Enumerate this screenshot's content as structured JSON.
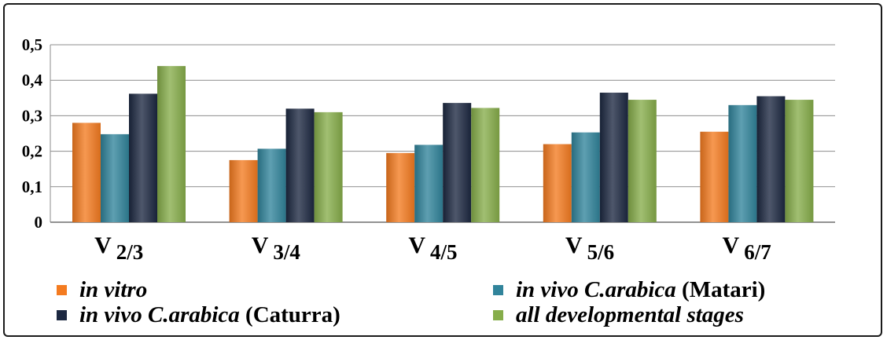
{
  "chart_data": {
    "type": "bar",
    "categories": [
      "V 2/3",
      "V 3/4",
      "V 4/5",
      "V 5/6",
      "V 6/7"
    ],
    "category_parts": [
      {
        "main": "V",
        "sub": "2/3"
      },
      {
        "main": "V",
        "sub": "3/4"
      },
      {
        "main": "V",
        "sub": "4/5"
      },
      {
        "main": "V",
        "sub": "5/6"
      },
      {
        "main": "V",
        "sub": "6/7"
      }
    ],
    "series": [
      {
        "name": "in vitro",
        "name_italic": "in vitro",
        "name_plain": "",
        "color": "#f47b20",
        "values": [
          0.28,
          0.175,
          0.195,
          0.22,
          0.255
        ]
      },
      {
        "name": "in vivo C.arabica (Matari)",
        "name_italic": "in vivo C.arabica",
        "name_plain": " (Matari)",
        "color": "#31849b",
        "values": [
          0.248,
          0.207,
          0.218,
          0.253,
          0.33
        ]
      },
      {
        "name": "in vivo C.arabica (Caturra)",
        "name_italic": "in vivo C.arabica",
        "name_plain": " (Caturra)",
        "color": "#1c2841",
        "values": [
          0.362,
          0.32,
          0.336,
          0.365,
          0.355
        ]
      },
      {
        "name": "all developmental stages",
        "name_italic": "all developmental stages",
        "name_plain": "",
        "color": "#86ad4a",
        "values": [
          0.44,
          0.31,
          0.322,
          0.345,
          0.345
        ]
      }
    ],
    "y_ticks": [
      "0",
      "0,1",
      "0,2",
      "0,3",
      "0,4",
      "0,5"
    ],
    "ylim": [
      0,
      0.5
    ],
    "grid": true,
    "legend_position": "bottom",
    "title": "",
    "xlabel": "",
    "ylabel": ""
  }
}
